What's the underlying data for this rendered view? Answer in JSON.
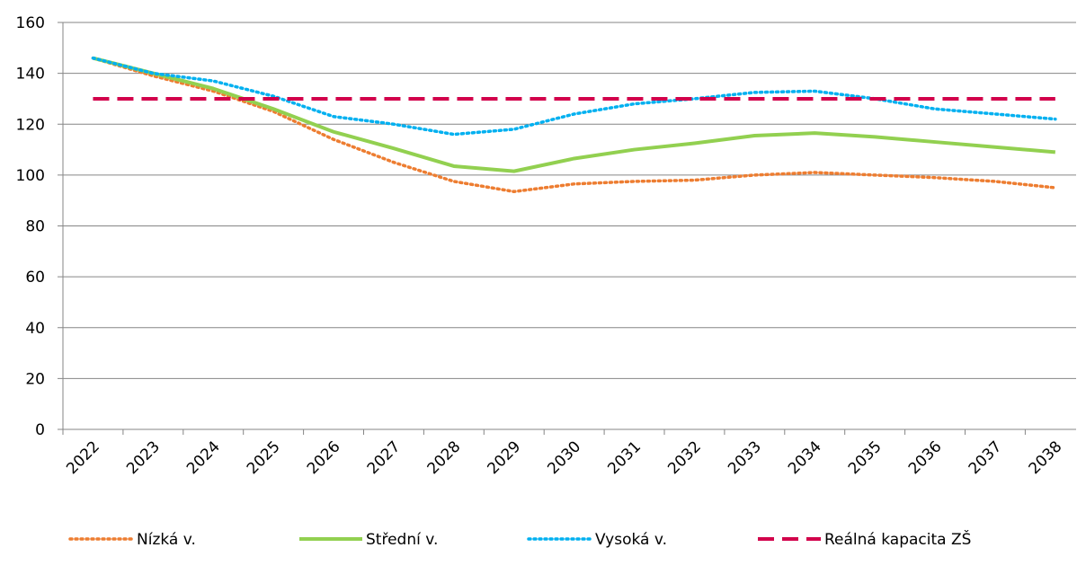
{
  "chart_data": {
    "type": "line",
    "categories": [
      "2022",
      "2023",
      "2024",
      "2025",
      "2026",
      "2027",
      "2028",
      "2029",
      "2030",
      "2031",
      "2032",
      "2033",
      "2034",
      "2035",
      "2036",
      "2037",
      "2038"
    ],
    "series": [
      {
        "name": "Nízká v.",
        "color": "#ed7d31",
        "style": "dotted",
        "values": [
          146,
          139,
          133,
          125,
          114,
          105,
          97.5,
          93.5,
          96.5,
          97.5,
          98,
          100,
          101,
          100,
          99,
          97.5,
          95
        ]
      },
      {
        "name": "Střední v.",
        "color": "#92d050",
        "style": "solid",
        "values": [
          146,
          140,
          134,
          126,
          117,
          110.5,
          103.5,
          101.5,
          106.5,
          110,
          112.5,
          115.5,
          116.5,
          115,
          113,
          111,
          109
        ]
      },
      {
        "name": "Vysoká v.",
        "color": "#00b0f0",
        "style": "dotted",
        "values": [
          146,
          140,
          137,
          131,
          123,
          120,
          116,
          118,
          124,
          128,
          130,
          132.5,
          133,
          130,
          126,
          124,
          122
        ]
      },
      {
        "name": "Reálná kapacita ZŠ",
        "color": "#d2004b",
        "style": "dashed",
        "values": [
          130,
          130,
          130,
          130,
          130,
          130,
          130,
          130,
          130,
          130,
          130,
          130,
          130,
          130,
          130,
          130,
          130
        ]
      }
    ],
    "ylim": [
      0,
      160
    ],
    "yticks": [
      0,
      20,
      40,
      60,
      80,
      100,
      120,
      140,
      160
    ],
    "grid": true,
    "legend": "bottom"
  }
}
